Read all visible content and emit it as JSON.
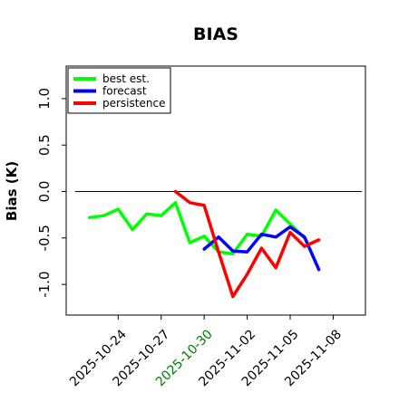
{
  "chart_data": {
    "type": "line",
    "title": "BIAS",
    "xlabel": "",
    "ylabel": "Bias (K)",
    "ylim": [
      -1.33,
      1.35
    ],
    "yticks": [
      -1.0,
      -0.5,
      0.0,
      0.5,
      1.0
    ],
    "ytick_labels": [
      "-1.0",
      "-0.5",
      "0.0",
      "0.5",
      "1.0"
    ],
    "xlim": [
      "2025-10-20T09:00",
      "2025-11-10T06:00"
    ],
    "xticks": [
      {
        "date": "2025-10-24",
        "label": "2025-10-24",
        "color": "#000000"
      },
      {
        "date": "2025-10-27",
        "label": "2025-10-27",
        "color": "#000000"
      },
      {
        "date": "2025-10-30",
        "label": "2025-10-30",
        "color": "#008000"
      },
      {
        "date": "2025-11-02",
        "label": "2025-11-02",
        "color": "#000000"
      },
      {
        "date": "2025-11-05",
        "label": "2025-11-05",
        "color": "#000000"
      },
      {
        "date": "2025-11-08",
        "label": "2025-11-08",
        "color": "#000000"
      }
    ],
    "reference_line": {
      "y": 0.0,
      "x_start": "2025-10-21",
      "x_end": "2025-11-10",
      "color": "#000000"
    },
    "legend": {
      "placement": "top-left"
    },
    "grid": false,
    "series": [
      {
        "name": "best est.",
        "color": "#00ff00",
        "x": [
          "2025-10-22",
          "2025-10-23",
          "2025-10-24",
          "2025-10-25",
          "2025-10-26",
          "2025-10-27",
          "2025-10-28",
          "2025-10-29",
          "2025-10-30",
          "2025-10-31",
          "2025-11-01",
          "2025-11-02",
          "2025-11-03",
          "2025-11-04",
          "2025-11-05",
          "2025-11-06",
          "2025-11-07"
        ],
        "values": [
          -0.28,
          -0.26,
          -0.19,
          -0.41,
          -0.24,
          -0.26,
          -0.12,
          -0.55,
          -0.48,
          -0.65,
          -0.67,
          -0.46,
          -0.48,
          -0.2,
          -0.35,
          -0.5,
          null
        ]
      },
      {
        "name": "forecast",
        "color": "#0000ff",
        "x": [
          "2025-10-30",
          "2025-10-31",
          "2025-11-01",
          "2025-11-02",
          "2025-11-03",
          "2025-11-04",
          "2025-11-05",
          "2025-11-06",
          "2025-11-07"
        ],
        "values": [
          -0.62,
          -0.49,
          -0.64,
          -0.65,
          -0.46,
          -0.49,
          -0.38,
          -0.49,
          -0.84
        ]
      },
      {
        "name": "persistence",
        "color": "#ff0000",
        "x": [
          "2025-10-28",
          "2025-10-29",
          "2025-10-30",
          "2025-10-31",
          "2025-11-01",
          "2025-11-02",
          "2025-11-03",
          "2025-11-04",
          "2025-11-05",
          "2025-11-06",
          "2025-11-07"
        ],
        "values": [
          0.0,
          -0.12,
          -0.15,
          -0.65,
          -1.13,
          -0.89,
          -0.61,
          -0.82,
          -0.44,
          -0.59,
          -0.52
        ]
      }
    ]
  }
}
